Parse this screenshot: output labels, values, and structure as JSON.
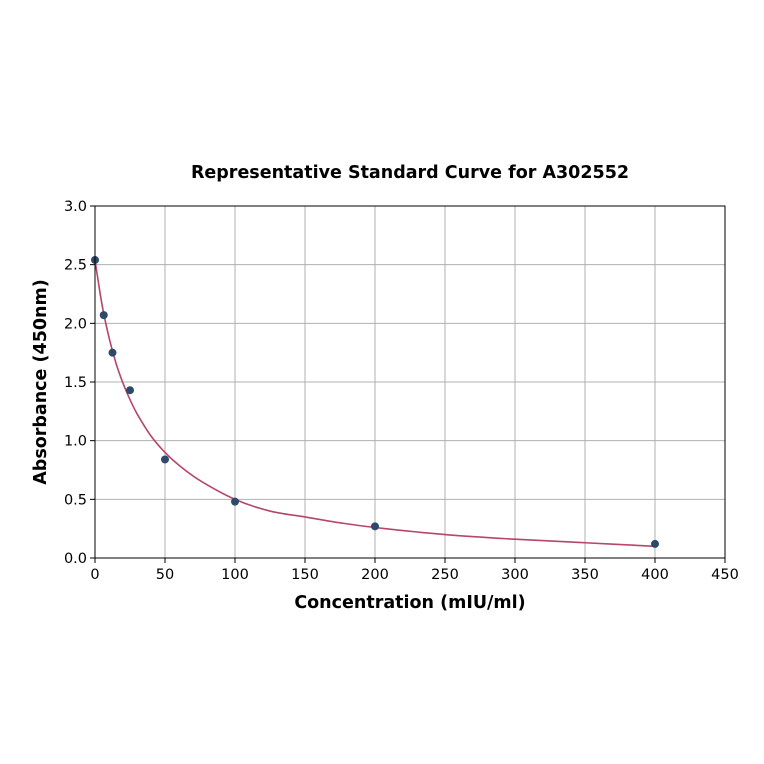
{
  "chart_data": {
    "type": "scatter",
    "title": "Representative Standard Curve for A302552",
    "xlabel": "Concentration (mIU/ml)",
    "ylabel": "Absorbance (450nm)",
    "xlim": [
      0,
      450
    ],
    "ylim": [
      0,
      3.0
    ],
    "xticks": [
      "0",
      "50",
      "100",
      "150",
      "200",
      "250",
      "300",
      "350",
      "400",
      "450"
    ],
    "yticks": [
      "0.0",
      "0.5",
      "1.0",
      "1.5",
      "2.0",
      "2.5",
      "3.0"
    ],
    "grid": true,
    "series": [
      {
        "kind": "points",
        "x": [
          0,
          6.25,
          12.5,
          25,
          50,
          100,
          200,
          400
        ],
        "y": [
          2.54,
          2.07,
          1.75,
          1.43,
          0.84,
          0.48,
          0.27,
          0.12
        ]
      },
      {
        "kind": "fitted-curve",
        "x": [
          0,
          5,
          10,
          15,
          20,
          25,
          30,
          40,
          50,
          60,
          75,
          100,
          125,
          150,
          175,
          200,
          250,
          300,
          350,
          400
        ],
        "y": [
          2.54,
          2.16,
          1.88,
          1.66,
          1.49,
          1.35,
          1.23,
          1.04,
          0.9,
          0.79,
          0.66,
          0.5,
          0.4,
          0.35,
          0.3,
          0.26,
          0.2,
          0.16,
          0.13,
          0.1
        ]
      }
    ],
    "colors": {
      "points": "#2e4a6b",
      "curve": "#b5476a",
      "grid": "#b0b0b0",
      "axes": "#000000"
    }
  }
}
